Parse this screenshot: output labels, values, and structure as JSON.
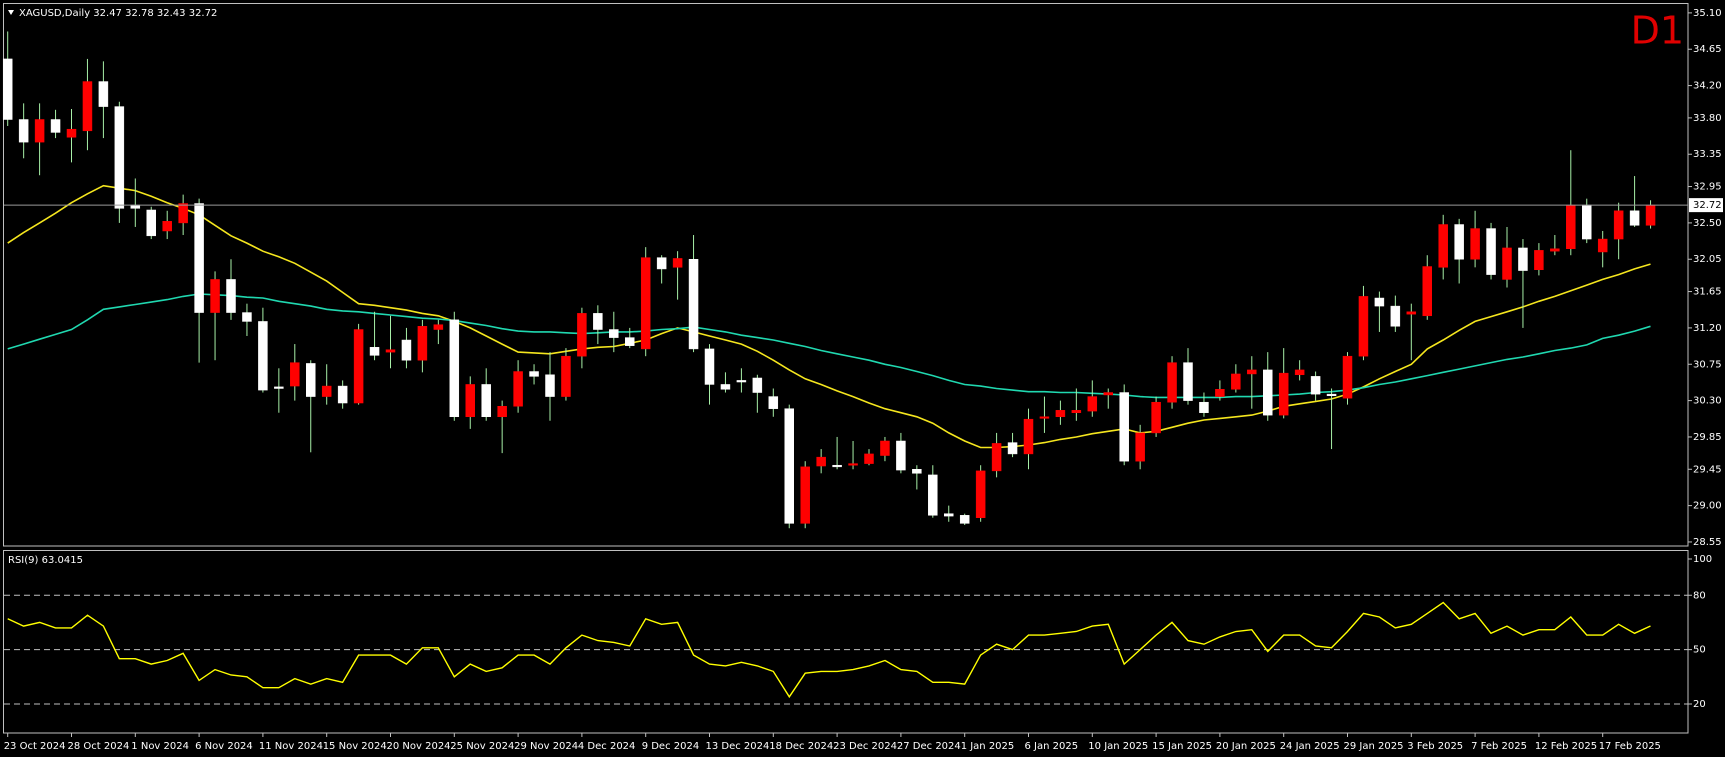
{
  "chart_data": [
    {
      "type": "candlestick",
      "title": "XAGUSD,Daily  32.47 32.78 32.43 32.72",
      "timeframe": "D1",
      "categories": [
        "23 Oct 2024",
        null,
        null,
        null,
        "28 Oct 2024",
        null,
        null,
        null,
        "1 Nov 2024",
        null,
        null,
        null,
        "6 Nov 2024",
        null,
        null,
        null,
        "11 Nov 2024",
        null,
        null,
        null,
        "15 Nov 2024",
        null,
        null,
        null,
        "20 Nov 2024",
        null,
        null,
        null,
        "25 Nov 2024",
        null,
        null,
        null,
        "29 Nov 2024",
        null,
        null,
        null,
        "4 Dec 2024",
        null,
        null,
        null,
        "9 Dec 2024",
        null,
        null,
        null,
        "13 Dec 2024",
        null,
        null,
        null,
        "18 Dec 2024",
        null,
        null,
        null,
        "23 Dec 2024",
        null,
        null,
        null,
        "27 Dec 2024",
        null,
        null,
        null,
        "1 Jan 2025",
        null,
        null,
        null,
        "6 Jan 2025",
        null,
        null,
        null,
        "10 Jan 2025",
        null,
        null,
        null,
        "15 Jan 2025",
        null,
        null,
        null,
        "20 Jan 2025",
        null,
        null,
        null,
        "24 Jan 2025",
        null,
        null,
        null,
        "29 Jan 2025",
        null,
        null,
        null,
        "3 Feb 2025",
        null,
        null,
        null,
        "7 Feb 2025",
        null,
        null,
        null,
        "12 Feb 2025",
        null,
        null,
        null,
        "17 Feb 2025",
        null,
        null,
        null
      ],
      "open": [
        34.53,
        33.78,
        33.5,
        33.78,
        33.56,
        33.64,
        34.25,
        33.94,
        32.72,
        32.66,
        32.4,
        32.5,
        32.74,
        31.39,
        31.8,
        31.39,
        31.28,
        30.47,
        30.48,
        30.76,
        30.35,
        30.48,
        30.27,
        30.96,
        30.9,
        31.05,
        30.8,
        31.18,
        31.3,
        30.1,
        30.5,
        30.1,
        30.23,
        30.66,
        30.62,
        30.35,
        30.85,
        31.38,
        31.18,
        31.08,
        30.94,
        32.07,
        31.95,
        32.05,
        30.94,
        30.5,
        30.55,
        30.58,
        30.35,
        30.2,
        28.78,
        29.49,
        29.5,
        29.5,
        29.52,
        29.62,
        29.8,
        29.45,
        29.38,
        28.9,
        28.88,
        28.85,
        29.43,
        29.78,
        29.64,
        30.08,
        30.1,
        30.15,
        30.17,
        30.37,
        30.4,
        29.55,
        29.9,
        30.28,
        30.77,
        30.28,
        30.35,
        30.44,
        30.63,
        30.68,
        30.12,
        30.62,
        30.6,
        30.38,
        30.33,
        30.85,
        31.57,
        31.47,
        31.37,
        31.35,
        31.95,
        32.48,
        32.05,
        32.43,
        31.8,
        32.19,
        31.92,
        32.15,
        32.18,
        32.72,
        32.14,
        32.3,
        32.65,
        32.47
      ],
      "high": [
        34.87,
        33.98,
        33.98,
        33.9,
        33.91,
        34.53,
        34.5,
        34.0,
        33.05,
        32.7,
        32.65,
        32.85,
        32.8,
        31.9,
        32.05,
        31.5,
        31.45,
        30.7,
        31.0,
        30.8,
        30.75,
        30.55,
        31.25,
        31.4,
        31.35,
        31.2,
        31.3,
        31.3,
        31.4,
        30.6,
        30.7,
        30.3,
        30.8,
        30.75,
        30.9,
        30.95,
        31.45,
        31.48,
        31.4,
        31.2,
        32.2,
        32.1,
        32.15,
        32.35,
        31.0,
        30.65,
        30.7,
        30.62,
        30.45,
        30.25,
        29.55,
        29.7,
        29.85,
        29.8,
        29.7,
        29.85,
        29.9,
        29.5,
        29.5,
        29.0,
        28.9,
        29.5,
        29.9,
        29.9,
        30.2,
        30.35,
        30.3,
        30.45,
        30.55,
        30.45,
        30.5,
        30.0,
        30.35,
        30.85,
        30.95,
        30.4,
        30.55,
        30.75,
        30.85,
        30.9,
        30.95,
        30.8,
        30.66,
        30.45,
        30.9,
        31.72,
        31.65,
        31.6,
        31.5,
        32.1,
        32.6,
        32.55,
        32.65,
        32.5,
        32.45,
        32.3,
        32.25,
        32.35,
        33.4,
        32.8,
        32.4,
        32.75,
        33.08,
        32.78
      ],
      "low": [
        33.7,
        33.3,
        33.09,
        33.55,
        33.25,
        33.4,
        33.55,
        32.5,
        32.45,
        32.3,
        32.3,
        32.35,
        30.77,
        30.8,
        31.3,
        31.1,
        30.4,
        30.15,
        30.3,
        29.66,
        30.25,
        30.2,
        30.25,
        30.8,
        30.7,
        30.7,
        30.65,
        31.0,
        30.05,
        29.95,
        30.05,
        29.65,
        30.15,
        30.5,
        30.05,
        30.3,
        30.7,
        31.0,
        30.9,
        30.95,
        30.85,
        31.75,
        31.55,
        30.9,
        30.25,
        30.4,
        30.4,
        30.15,
        30.1,
        28.72,
        28.72,
        29.4,
        29.45,
        29.45,
        29.5,
        29.55,
        29.4,
        29.2,
        28.85,
        28.8,
        28.76,
        28.8,
        29.35,
        29.6,
        29.45,
        29.9,
        30.0,
        30.05,
        30.1,
        30.2,
        29.5,
        29.45,
        29.85,
        30.2,
        30.25,
        30.1,
        30.3,
        30.4,
        30.2,
        30.05,
        30.08,
        30.55,
        30.3,
        29.7,
        30.25,
        30.8,
        31.15,
        31.15,
        30.8,
        31.3,
        31.8,
        31.75,
        31.95,
        31.8,
        31.7,
        31.2,
        31.85,
        32.1,
        32.1,
        32.25,
        31.95,
        32.05,
        32.45,
        32.43
      ],
      "close": [
        33.78,
        33.5,
        33.78,
        33.62,
        33.66,
        34.25,
        33.94,
        32.68,
        32.68,
        32.34,
        32.52,
        32.74,
        31.39,
        31.8,
        31.39,
        31.28,
        30.43,
        30.45,
        30.77,
        30.35,
        30.48,
        30.27,
        31.18,
        30.86,
        30.93,
        30.8,
        31.22,
        31.24,
        30.1,
        30.5,
        30.1,
        30.23,
        30.66,
        30.6,
        30.35,
        30.85,
        31.38,
        31.18,
        31.08,
        30.98,
        32.07,
        31.93,
        32.06,
        30.94,
        30.5,
        30.44,
        30.53,
        30.4,
        30.2,
        28.78,
        29.48,
        29.6,
        29.48,
        29.52,
        29.64,
        29.8,
        29.44,
        29.4,
        28.88,
        28.87,
        28.78,
        29.43,
        29.77,
        29.64,
        30.07,
        30.1,
        30.18,
        30.18,
        30.35,
        30.4,
        29.55,
        29.9,
        30.28,
        30.77,
        30.3,
        30.15,
        30.44,
        30.63,
        30.68,
        30.12,
        30.64,
        30.68,
        30.38,
        30.36,
        30.85,
        31.59,
        31.47,
        31.22,
        31.4,
        31.96,
        32.48,
        32.05,
        32.43,
        31.86,
        32.19,
        31.91,
        32.16,
        32.18,
        32.72,
        32.3,
        32.3,
        32.65,
        32.47,
        32.72
      ],
      "up_color": "#ff0000",
      "down_color": "#ffffff",
      "wick_color": "#a8f0a8",
      "current_price": 32.72,
      "ylim": [
        28.5,
        35.21
      ],
      "yticks": [
        {
          "value": 35.1,
          "label": "35.10"
        },
        34.65,
        {
          "value": 34.2,
          "label": "34.20"
        },
        {
          "value": 33.8,
          "label": "33.80"
        },
        33.35,
        32.95,
        {
          "value": 32.5,
          "label": "32.50"
        },
        32.05,
        31.65,
        {
          "value": 31.2,
          "label": "31.20"
        },
        30.75,
        {
          "value": 30.3,
          "label": "30.30"
        },
        29.85,
        29.45,
        {
          "value": 29,
          "label": "29.00"
        },
        28.55
      ],
      "series": [
        {
          "color": "#f5e61e",
          "values": [
            32.25,
            32.38,
            32.5,
            32.62,
            32.75,
            32.86,
            32.96,
            32.93,
            32.9,
            32.83,
            32.75,
            32.68,
            32.6,
            32.47,
            32.34,
            32.25,
            32.15,
            32.08,
            32.0,
            31.89,
            31.78,
            31.64,
            31.5,
            31.48,
            31.45,
            31.42,
            31.38,
            31.35,
            31.28,
            31.2,
            31.1,
            31.0,
            30.9,
            30.89,
            30.88,
            30.91,
            30.94,
            30.96,
            30.97,
            31.01,
            31.05,
            31.13,
            31.2,
            31.15,
            31.1,
            31.05,
            31.0,
            30.91,
            30.8,
            30.68,
            30.57,
            30.5,
            30.42,
            30.35,
            30.27,
            30.2,
            30.15,
            30.1,
            30.02,
            29.9,
            29.8,
            29.72,
            29.72,
            29.73,
            29.75,
            29.78,
            29.82,
            29.85,
            29.89,
            29.92,
            29.95,
            29.9,
            29.92,
            29.97,
            30.02,
            30.06,
            30.08,
            30.1,
            30.12,
            30.17,
            30.23,
            30.26,
            30.29,
            30.32,
            30.38,
            30.47,
            30.57,
            30.66,
            30.75,
            30.94,
            31.05,
            31.17,
            31.28,
            31.34,
            31.4,
            31.46,
            31.53,
            31.59,
            31.66,
            31.73,
            31.8,
            31.86,
            31.93,
            31.99
          ]
        },
        {
          "color": "#20d8b0",
          "values": [
            30.94,
            31.0,
            31.06,
            31.12,
            31.18,
            31.3,
            31.43,
            31.46,
            31.49,
            31.52,
            31.55,
            31.59,
            31.62,
            31.61,
            31.6,
            31.58,
            31.57,
            31.53,
            31.5,
            31.47,
            31.43,
            31.41,
            31.4,
            31.38,
            31.36,
            31.34,
            31.32,
            31.31,
            31.29,
            31.26,
            31.23,
            31.19,
            31.16,
            31.15,
            31.15,
            31.14,
            31.13,
            31.14,
            31.15,
            31.15,
            31.16,
            31.18,
            31.19,
            31.21,
            31.18,
            31.15,
            31.11,
            31.08,
            31.05,
            31.01,
            30.97,
            30.92,
            30.88,
            30.84,
            30.8,
            30.75,
            30.71,
            30.66,
            30.61,
            30.55,
            30.5,
            30.48,
            30.45,
            30.43,
            30.41,
            30.41,
            30.4,
            30.4,
            30.39,
            30.38,
            30.37,
            30.35,
            30.34,
            30.34,
            30.34,
            30.34,
            30.34,
            30.35,
            30.35,
            30.36,
            30.37,
            30.38,
            30.4,
            30.41,
            30.43,
            30.46,
            30.5,
            30.53,
            30.57,
            30.61,
            30.65,
            30.69,
            30.73,
            30.77,
            30.81,
            30.84,
            30.88,
            30.92,
            30.95,
            30.99,
            31.07,
            31.11,
            31.16,
            31.22
          ]
        }
      ]
    },
    {
      "type": "line",
      "title": "RSI(9) 63.0415",
      "color": "#ffff00",
      "ylim": [
        4,
        100
      ],
      "yticks": [
        100,
        80,
        50,
        20
      ],
      "values": [
        67,
        63,
        65,
        62,
        62,
        69,
        63,
        45,
        45,
        42,
        44,
        48,
        33,
        39,
        36,
        35,
        29,
        29,
        34,
        31,
        34,
        32,
        47,
        47,
        47,
        42,
        51,
        51,
        35,
        42,
        38,
        40,
        47,
        47,
        42,
        51,
        58,
        55,
        54,
        52,
        67,
        64,
        65,
        47,
        42,
        41,
        43,
        41,
        38,
        24,
        37,
        38,
        38,
        39,
        41,
        44,
        39,
        38,
        32,
        32,
        31,
        47,
        53,
        50,
        58,
        58,
        59,
        60,
        63,
        64,
        42,
        50,
        58,
        65,
        55,
        53,
        57,
        60,
        61,
        49,
        58,
        58,
        52,
        51,
        60,
        70,
        68,
        62,
        64,
        70,
        76,
        67,
        70,
        59,
        63,
        58,
        61,
        61,
        68,
        58,
        58,
        64,
        59,
        63.04
      ]
    }
  ]
}
